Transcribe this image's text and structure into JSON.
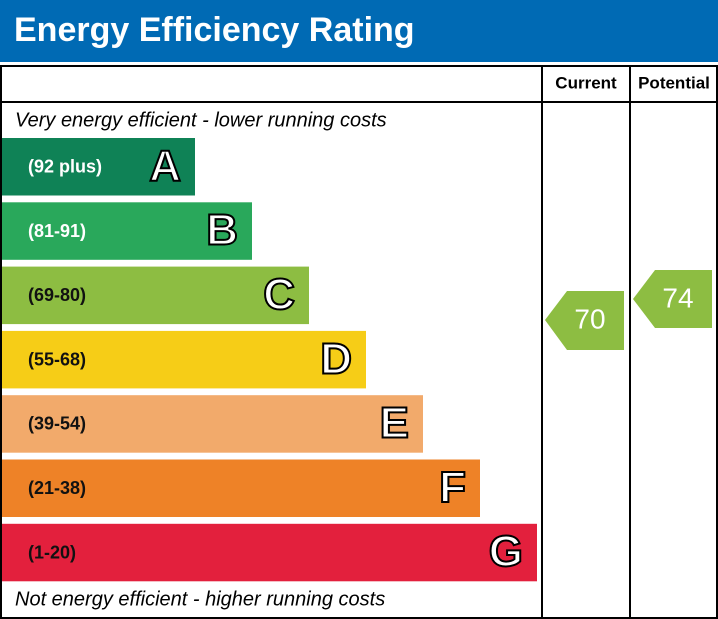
{
  "title": "Energy Efficiency Rating",
  "columns": [
    "Current",
    "Potential"
  ],
  "top_note": "Very energy efficient - lower running costs",
  "bottom_note": "Not energy efficient - higher running costs",
  "bands": [
    {
      "range": "(92 plus)",
      "letter": "A",
      "color": "#0f8256"
    },
    {
      "range": "(81-91)",
      "letter": "B",
      "color": "#29a85b"
    },
    {
      "range": "(69-80)",
      "letter": "C",
      "color": "#8dbd42"
    },
    {
      "range": "(55-68)",
      "letter": "D",
      "color": "#f6cd17"
    },
    {
      "range": "(39-54)",
      "letter": "E",
      "color": "#f2aa6b"
    },
    {
      "range": "(21-38)",
      "letter": "F",
      "color": "#ee8227"
    },
    {
      "range": "(1-20)",
      "letter": "G",
      "color": "#e3203d"
    }
  ],
  "current": 70,
  "potential": 74
}
